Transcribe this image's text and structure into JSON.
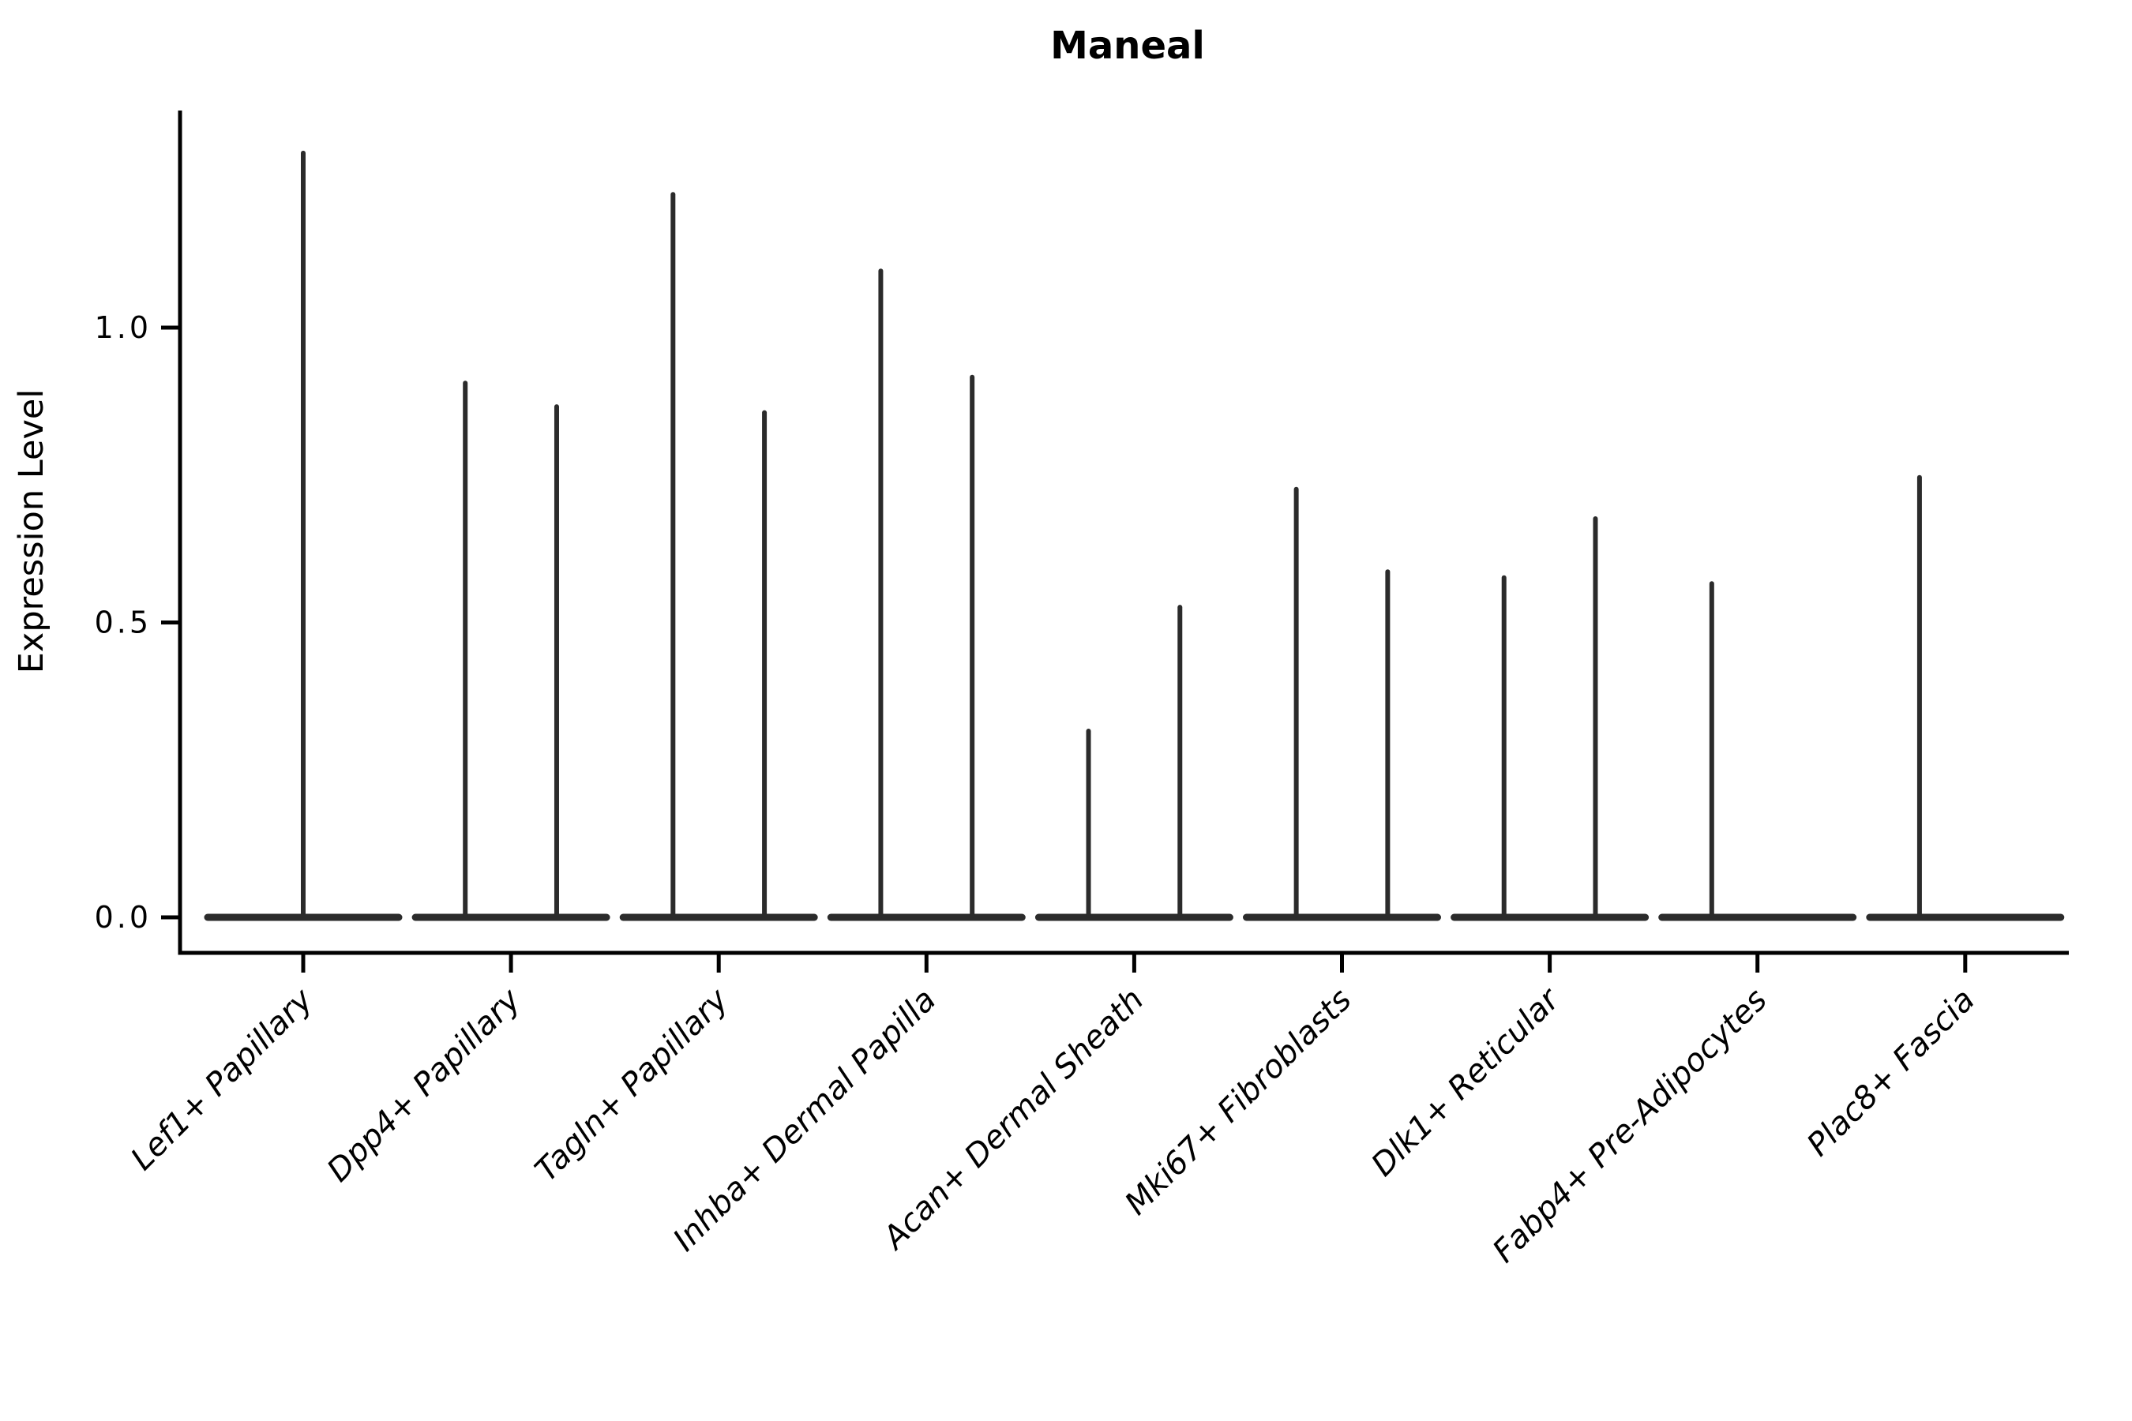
{
  "chart_data": {
    "type": "violin",
    "title": "Maneal",
    "ylabel": "Expression Level",
    "xlabel": "",
    "ytick_values": [
      0.0,
      0.5,
      1.0
    ],
    "ytick_labels": [
      "0.0",
      "0.5",
      "1.0"
    ],
    "ylim": [
      -0.06,
      1.37
    ],
    "grid": false,
    "legend": "none",
    "violin_color": "#2b2b2b",
    "axis_color": "#000000",
    "categories": [
      "Lef1+ Papillary",
      "Dpp4+ Papillary",
      "Tagln+ Papillary",
      "Inhba+ Dermal Papilla",
      "Acan+ Dermal Sheath",
      "Mki67+ Fibroblasts",
      "Dlk1+ Reticular",
      "Fabp4+ Pre-Adipocytes",
      "Plac8+ Fascia"
    ],
    "distribution_note": "Each category shows thin violins whose mass is concentrated at 0 (wide flat base) with a narrow spike reaching the maximum expression value; offset is the spike position in category-width units relative to the category center.",
    "violins": [
      {
        "spikes": [
          {
            "offset": 0.0,
            "max": 1.3
          }
        ]
      },
      {
        "spikes": [
          {
            "offset": -0.22,
            "max": 0.91
          },
          {
            "offset": 0.22,
            "max": 0.87
          }
        ]
      },
      {
        "spikes": [
          {
            "offset": -0.22,
            "max": 1.23
          },
          {
            "offset": 0.22,
            "max": 0.86
          }
        ]
      },
      {
        "spikes": [
          {
            "offset": -0.22,
            "max": 1.1
          },
          {
            "offset": 0.22,
            "max": 0.92
          }
        ]
      },
      {
        "spikes": [
          {
            "offset": -0.22,
            "max": 0.32
          },
          {
            "offset": 0.22,
            "max": 0.53
          }
        ]
      },
      {
        "spikes": [
          {
            "offset": -0.22,
            "max": 0.73
          },
          {
            "offset": 0.22,
            "max": 0.59
          }
        ]
      },
      {
        "spikes": [
          {
            "offset": -0.22,
            "max": 0.58
          },
          {
            "offset": 0.22,
            "max": 0.68
          }
        ]
      },
      {
        "spikes": [
          {
            "offset": -0.22,
            "max": 0.57
          }
        ]
      },
      {
        "spikes": [
          {
            "offset": -0.22,
            "max": 0.75
          }
        ]
      }
    ]
  }
}
